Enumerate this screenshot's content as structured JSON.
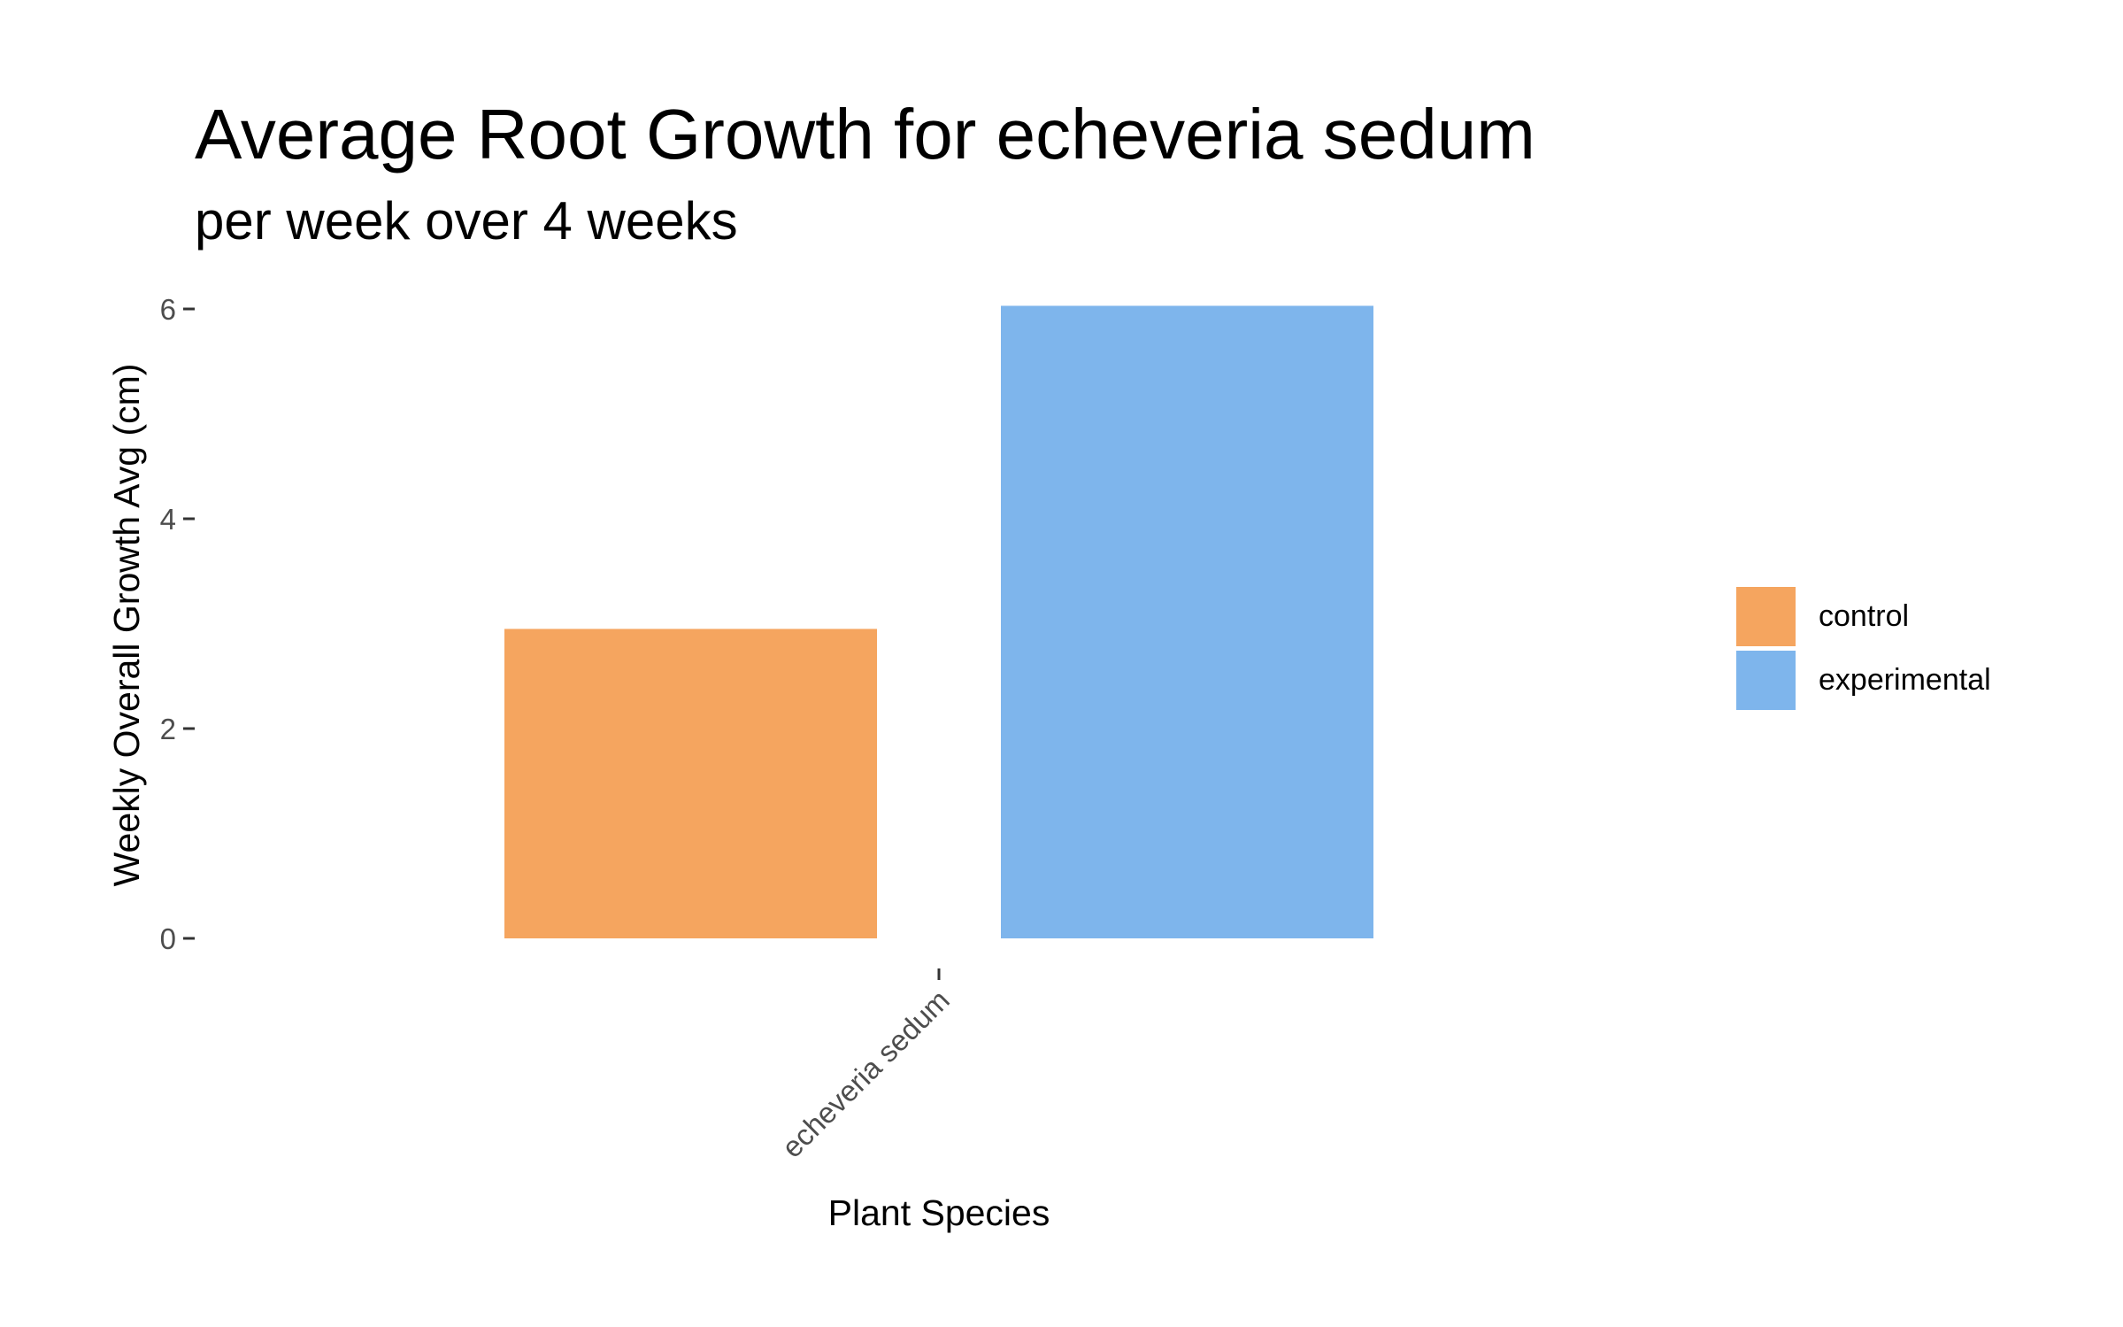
{
  "chart_data": {
    "type": "bar",
    "title": "Average Root Growth for echeveria sedum",
    "subtitle": "per week over 4 weeks",
    "xlabel": "Plant Species",
    "ylabel": "Weekly Overall Growth Avg (cm)",
    "categories": [
      "echeveria sedum"
    ],
    "series": [
      {
        "name": "control",
        "values": [
          2.95
        ],
        "color": "#F5A55F"
      },
      {
        "name": "experimental",
        "values": [
          6.03
        ],
        "color": "#7EB5EC"
      }
    ],
    "ylim": [
      0,
      6.4
    ],
    "yticks": [
      0,
      2,
      4,
      6
    ],
    "ytick_labels": [
      "0",
      "2",
      "4",
      "6"
    ],
    "grid": false,
    "legend_position": "right"
  }
}
